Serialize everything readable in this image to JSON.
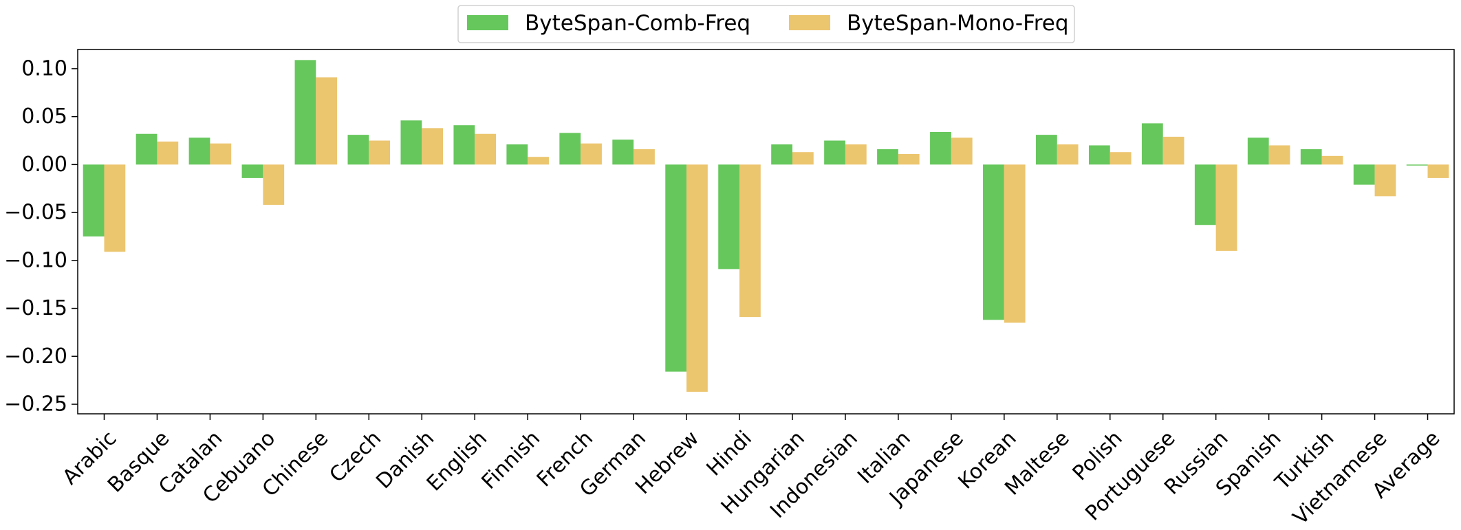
{
  "chart_data": {
    "type": "bar",
    "title": "",
    "xlabel": "",
    "ylabel": "",
    "ylim": [
      -0.26,
      0.12
    ],
    "yticks": [
      -0.25,
      -0.2,
      -0.15,
      -0.1,
      -0.05,
      0.0,
      0.05,
      0.1
    ],
    "ytick_labels": [
      "−0.25",
      "−0.20",
      "−0.15",
      "−0.10",
      "−0.05",
      "0.00",
      "0.05",
      "0.10"
    ],
    "grid": false,
    "legend_position": "top-center",
    "categories": [
      "Arabic",
      "Basque",
      "Catalan",
      "Cebuano",
      "Chinese",
      "Czech",
      "Danish",
      "English",
      "Finnish",
      "French",
      "German",
      "Hebrew",
      "Hindi",
      "Hungarian",
      "Indonesian",
      "Italian",
      "Japanese",
      "Korean",
      "Maltese",
      "Polish",
      "Portuguese",
      "Russian",
      "Spanish",
      "Turkish",
      "Vietnamese",
      "Average"
    ],
    "series": [
      {
        "name": "ByteSpan-Comb-Freq",
        "color": "#66c75c",
        "values": [
          -0.075,
          0.032,
          0.028,
          -0.014,
          0.109,
          0.031,
          0.046,
          0.041,
          0.021,
          0.033,
          0.026,
          -0.216,
          -0.109,
          0.021,
          0.025,
          0.016,
          0.034,
          -0.162,
          0.031,
          0.02,
          0.043,
          -0.063,
          0.028,
          0.016,
          -0.021,
          -0.001
        ]
      },
      {
        "name": "ByteSpan-Mono-Freq",
        "color": "#ecc56f",
        "values": [
          -0.091,
          0.024,
          0.022,
          -0.042,
          0.091,
          0.025,
          0.038,
          0.032,
          0.008,
          0.022,
          0.016,
          -0.237,
          -0.159,
          0.013,
          0.021,
          0.011,
          0.028,
          -0.165,
          0.021,
          0.013,
          0.029,
          -0.09,
          0.02,
          0.009,
          -0.033,
          -0.014
        ]
      }
    ]
  }
}
